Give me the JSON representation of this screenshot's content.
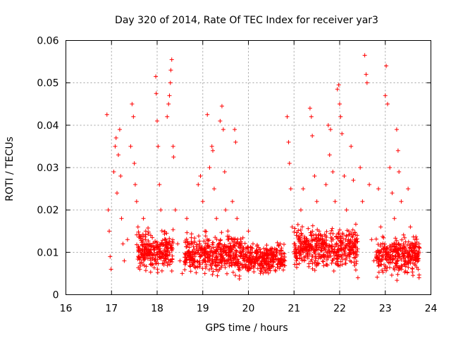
{
  "chart_data": {
    "type": "scatter",
    "title": "Day 320 of 2014, Rate Of TEC Index for receiver yar3",
    "xlabel": "GPS time / hours",
    "ylabel": "ROTI / TECUs",
    "xlim": [
      16,
      24
    ],
    "ylim": [
      0,
      0.06
    ],
    "x_ticks": [
      "16",
      "17",
      "18",
      "19",
      "20",
      "21",
      "22",
      "23",
      "24"
    ],
    "y_ticks": [
      "0",
      "0.01",
      "0.02",
      "0.03",
      "0.04",
      "0.05",
      "0.06"
    ],
    "grid": true,
    "marker": "plus",
    "color": "#ff0000",
    "series": [
      {
        "name": "ROTI",
        "points": [
          [
            16.9,
            0.0425
          ],
          [
            16.93,
            0.02
          ],
          [
            16.95,
            0.015
          ],
          [
            16.97,
            0.009
          ],
          [
            16.99,
            0.006
          ],
          [
            17.05,
            0.029
          ],
          [
            17.08,
            0.035
          ],
          [
            17.1,
            0.037
          ],
          [
            17.12,
            0.024
          ],
          [
            17.15,
            0.033
          ],
          [
            17.18,
            0.039
          ],
          [
            17.2,
            0.028
          ],
          [
            17.22,
            0.018
          ],
          [
            17.25,
            0.012
          ],
          [
            17.28,
            0.008
          ],
          [
            17.35,
            0.013
          ],
          [
            17.42,
            0.035
          ],
          [
            17.45,
            0.045
          ],
          [
            17.48,
            0.042
          ],
          [
            17.5,
            0.031
          ],
          [
            17.52,
            0.026
          ],
          [
            17.55,
            0.022
          ],
          [
            17.58,
            0.016
          ],
          [
            17.6,
            0.011
          ],
          [
            17.62,
            0.006
          ],
          [
            17.7,
            0.018
          ],
          [
            17.75,
            0.015
          ],
          [
            17.8,
            0.012
          ],
          [
            17.85,
            0.01
          ],
          [
            17.88,
            0.007
          ],
          [
            17.97,
            0.0515
          ],
          [
            17.98,
            0.0475
          ],
          [
            18.0,
            0.041
          ],
          [
            18.02,
            0.035
          ],
          [
            18.05,
            0.026
          ],
          [
            18.08,
            0.02
          ],
          [
            18.1,
            0.012
          ],
          [
            18.15,
            0.008
          ],
          [
            18.22,
            0.042
          ],
          [
            18.25,
            0.045
          ],
          [
            18.27,
            0.047
          ],
          [
            18.29,
            0.05
          ],
          [
            18.3,
            0.053
          ],
          [
            18.32,
            0.0555
          ],
          [
            18.35,
            0.035
          ],
          [
            18.36,
            0.0325
          ],
          [
            18.4,
            0.02
          ],
          [
            18.45,
            0.012
          ],
          [
            18.5,
            0.008
          ],
          [
            18.55,
            0.005
          ],
          [
            18.65,
            0.018
          ],
          [
            18.7,
            0.012
          ],
          [
            18.75,
            0.009
          ],
          [
            18.8,
            0.007
          ],
          [
            18.9,
            0.026
          ],
          [
            18.95,
            0.028
          ],
          [
            19.0,
            0.022
          ],
          [
            19.05,
            0.015
          ],
          [
            19.1,
            0.0425
          ],
          [
            19.15,
            0.03
          ],
          [
            19.2,
            0.035
          ],
          [
            19.22,
            0.034
          ],
          [
            19.25,
            0.025
          ],
          [
            19.3,
            0.018
          ],
          [
            19.35,
            0.012
          ],
          [
            19.38,
            0.041
          ],
          [
            19.42,
            0.0445
          ],
          [
            19.45,
            0.039
          ],
          [
            19.48,
            0.029
          ],
          [
            19.5,
            0.02
          ],
          [
            19.55,
            0.013
          ],
          [
            19.6,
            0.009
          ],
          [
            19.65,
            0.022
          ],
          [
            19.7,
            0.039
          ],
          [
            19.72,
            0.036
          ],
          [
            19.75,
            0.018
          ],
          [
            19.8,
            0.012
          ],
          [
            19.9,
            0.008
          ],
          [
            20.0,
            0.015
          ],
          [
            20.1,
            0.012
          ],
          [
            20.2,
            0.01
          ],
          [
            20.3,
            0.008
          ],
          [
            20.4,
            0.007
          ],
          [
            20.5,
            0.011
          ],
          [
            20.6,
            0.009
          ],
          [
            20.7,
            0.012
          ],
          [
            20.8,
            0.008
          ],
          [
            20.85,
            0.042
          ],
          [
            20.88,
            0.036
          ],
          [
            20.9,
            0.031
          ],
          [
            20.93,
            0.025
          ],
          [
            20.96,
            0.016
          ],
          [
            21.0,
            0.012
          ],
          [
            21.05,
            0.008
          ],
          [
            21.15,
            0.02
          ],
          [
            21.2,
            0.025
          ],
          [
            21.25,
            0.012
          ],
          [
            21.3,
            0.009
          ],
          [
            21.35,
            0.044
          ],
          [
            21.38,
            0.042
          ],
          [
            21.4,
            0.0375
          ],
          [
            21.45,
            0.028
          ],
          [
            21.5,
            0.022
          ],
          [
            21.55,
            0.015
          ],
          [
            21.6,
            0.011
          ],
          [
            21.65,
            0.009
          ],
          [
            21.7,
            0.026
          ],
          [
            21.75,
            0.04
          ],
          [
            21.78,
            0.033
          ],
          [
            21.8,
            0.039
          ],
          [
            21.85,
            0.029
          ],
          [
            21.9,
            0.022
          ],
          [
            21.95,
            0.0485
          ],
          [
            21.98,
            0.0495
          ],
          [
            22.0,
            0.045
          ],
          [
            22.02,
            0.042
          ],
          [
            22.05,
            0.038
          ],
          [
            22.1,
            0.028
          ],
          [
            22.15,
            0.02
          ],
          [
            22.2,
            0.015
          ],
          [
            22.25,
            0.035
          ],
          [
            22.3,
            0.027
          ],
          [
            22.35,
            0.01
          ],
          [
            22.4,
            0.004
          ],
          [
            22.45,
            0.03
          ],
          [
            22.5,
            0.022
          ],
          [
            22.55,
            0.0565
          ],
          [
            22.58,
            0.052
          ],
          [
            22.6,
            0.05
          ],
          [
            22.65,
            0.026
          ],
          [
            22.7,
            0.013
          ],
          [
            22.75,
            0.008
          ],
          [
            22.85,
            0.025
          ],
          [
            22.9,
            0.016
          ],
          [
            22.95,
            0.01
          ],
          [
            23.0,
            0.047
          ],
          [
            23.02,
            0.054
          ],
          [
            23.05,
            0.045
          ],
          [
            23.1,
            0.03
          ],
          [
            23.15,
            0.024
          ],
          [
            23.2,
            0.018
          ],
          [
            23.25,
            0.039
          ],
          [
            23.28,
            0.034
          ],
          [
            23.3,
            0.029
          ],
          [
            23.35,
            0.022
          ],
          [
            23.4,
            0.012
          ],
          [
            23.45,
            0.008
          ],
          [
            23.5,
            0.025
          ],
          [
            23.55,
            0.016
          ],
          [
            23.6,
            0.01
          ],
          [
            23.65,
            0.013
          ],
          [
            23.7,
            0.009
          ],
          [
            23.72,
            0.006
          ],
          [
            23.74,
            0.004
          ],
          [
            23.75,
            0.011
          ]
        ]
      }
    ],
    "dense_bands": [
      {
        "x": [
          17.55,
          18.35
        ],
        "y": [
          0.004,
          0.017
        ]
      },
      {
        "x": [
          18.6,
          19.9
        ],
        "y": [
          0.003,
          0.016
        ]
      },
      {
        "x": [
          19.9,
          20.8
        ],
        "y": [
          0.004,
          0.013
        ]
      },
      {
        "x": [
          21.0,
          22.4
        ],
        "y": [
          0.004,
          0.018
        ]
      },
      {
        "x": [
          22.8,
          23.75
        ],
        "y": [
          0.003,
          0.015
        ]
      }
    ]
  }
}
